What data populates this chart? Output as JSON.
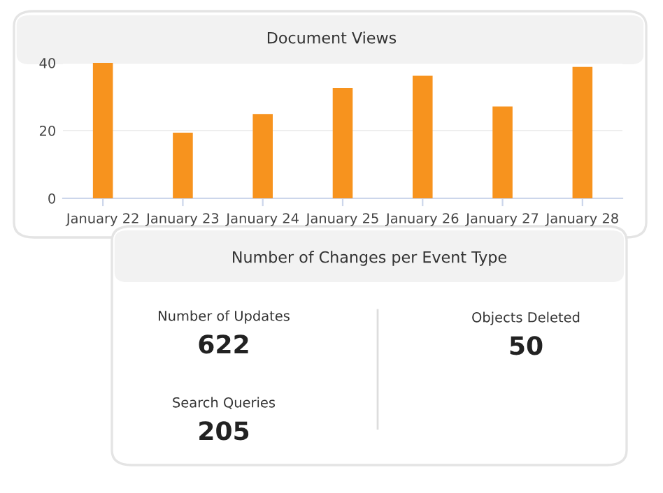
{
  "chart_data": [
    {
      "type": "bar",
      "title": "Document Views",
      "categories": [
        "January 22",
        "January 23",
        "January 24",
        "January 25",
        "January 26",
        "January 27",
        "January 28"
      ],
      "values": [
        40,
        19.4,
        24.9,
        32.6,
        36.2,
        27.1,
        38.8
      ],
      "color": "#f7931e",
      "ylim": [
        0,
        40
      ],
      "yticks": [
        0,
        20,
        40
      ],
      "grid": "y",
      "legend": false
    },
    {
      "type": "other",
      "title": "Number of Changes per Event Type",
      "categories": [
        "Number of Updates",
        "Objects Deleted",
        "Search Queries"
      ],
      "values": [
        622,
        50,
        205
      ],
      "data_labels": true
    }
  ]
}
